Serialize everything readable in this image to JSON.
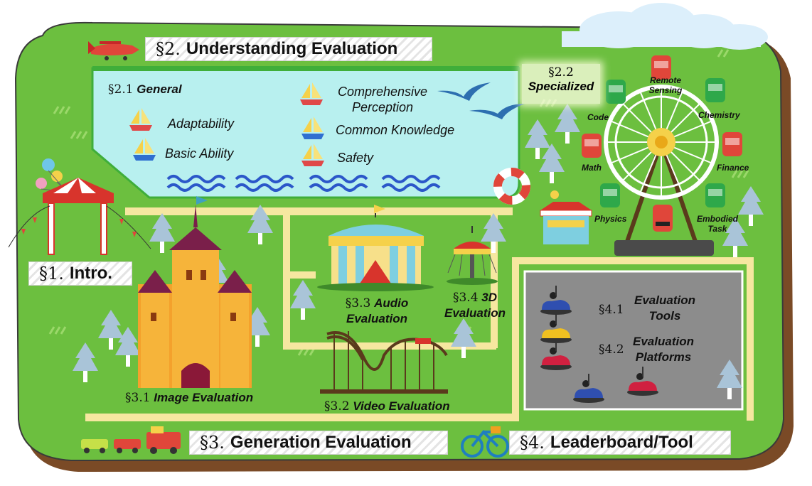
{
  "sections": {
    "intro": {
      "num": "§1.",
      "label": "Intro."
    },
    "understanding": {
      "num": "§2.",
      "label": "Understanding Evaluation"
    },
    "generation": {
      "num": "§3.",
      "label": "Generation Evaluation"
    },
    "leaderboard": {
      "num": "§4.",
      "label": "Leaderboard/Tool"
    }
  },
  "general": {
    "num": "§2.1",
    "label": "General",
    "items": [
      "Adaptability",
      "Basic Ability",
      "Comprehensive Perception",
      "Common Knowledge",
      "Safety"
    ]
  },
  "specialized": {
    "num": "§2.2",
    "label": "Specialized",
    "cabins": [
      "Remote Sensing",
      "Chemistry",
      "Code",
      "Math",
      "Finance",
      "Physics",
      "Embodied Task"
    ]
  },
  "generation_items": {
    "image": {
      "num": "§3.1",
      "label": "Image Evaluation"
    },
    "video": {
      "num": "§3.2",
      "label": "Video Evaluation"
    },
    "audio": {
      "num": "§3.3",
      "label": "Audio Evaluation"
    },
    "three_d": {
      "num": "§3.4",
      "label": "3D Evaluation"
    }
  },
  "tools": {
    "tools_item": {
      "num": "§4.1",
      "label": "Evaluation Tools"
    },
    "platforms_item": {
      "num": "§4.2",
      "label": "Evaluation Platforms"
    }
  },
  "colors": {
    "grass": "#6cbf3f",
    "grass_dark": "#3f8a2a",
    "soil": "#7a4a26",
    "lake": "#b8f0ef",
    "path": "#f6e7a0",
    "lot": "#8c8c8c",
    "cabin_red": "#e0463a",
    "cabin_green": "#2ea84a"
  }
}
